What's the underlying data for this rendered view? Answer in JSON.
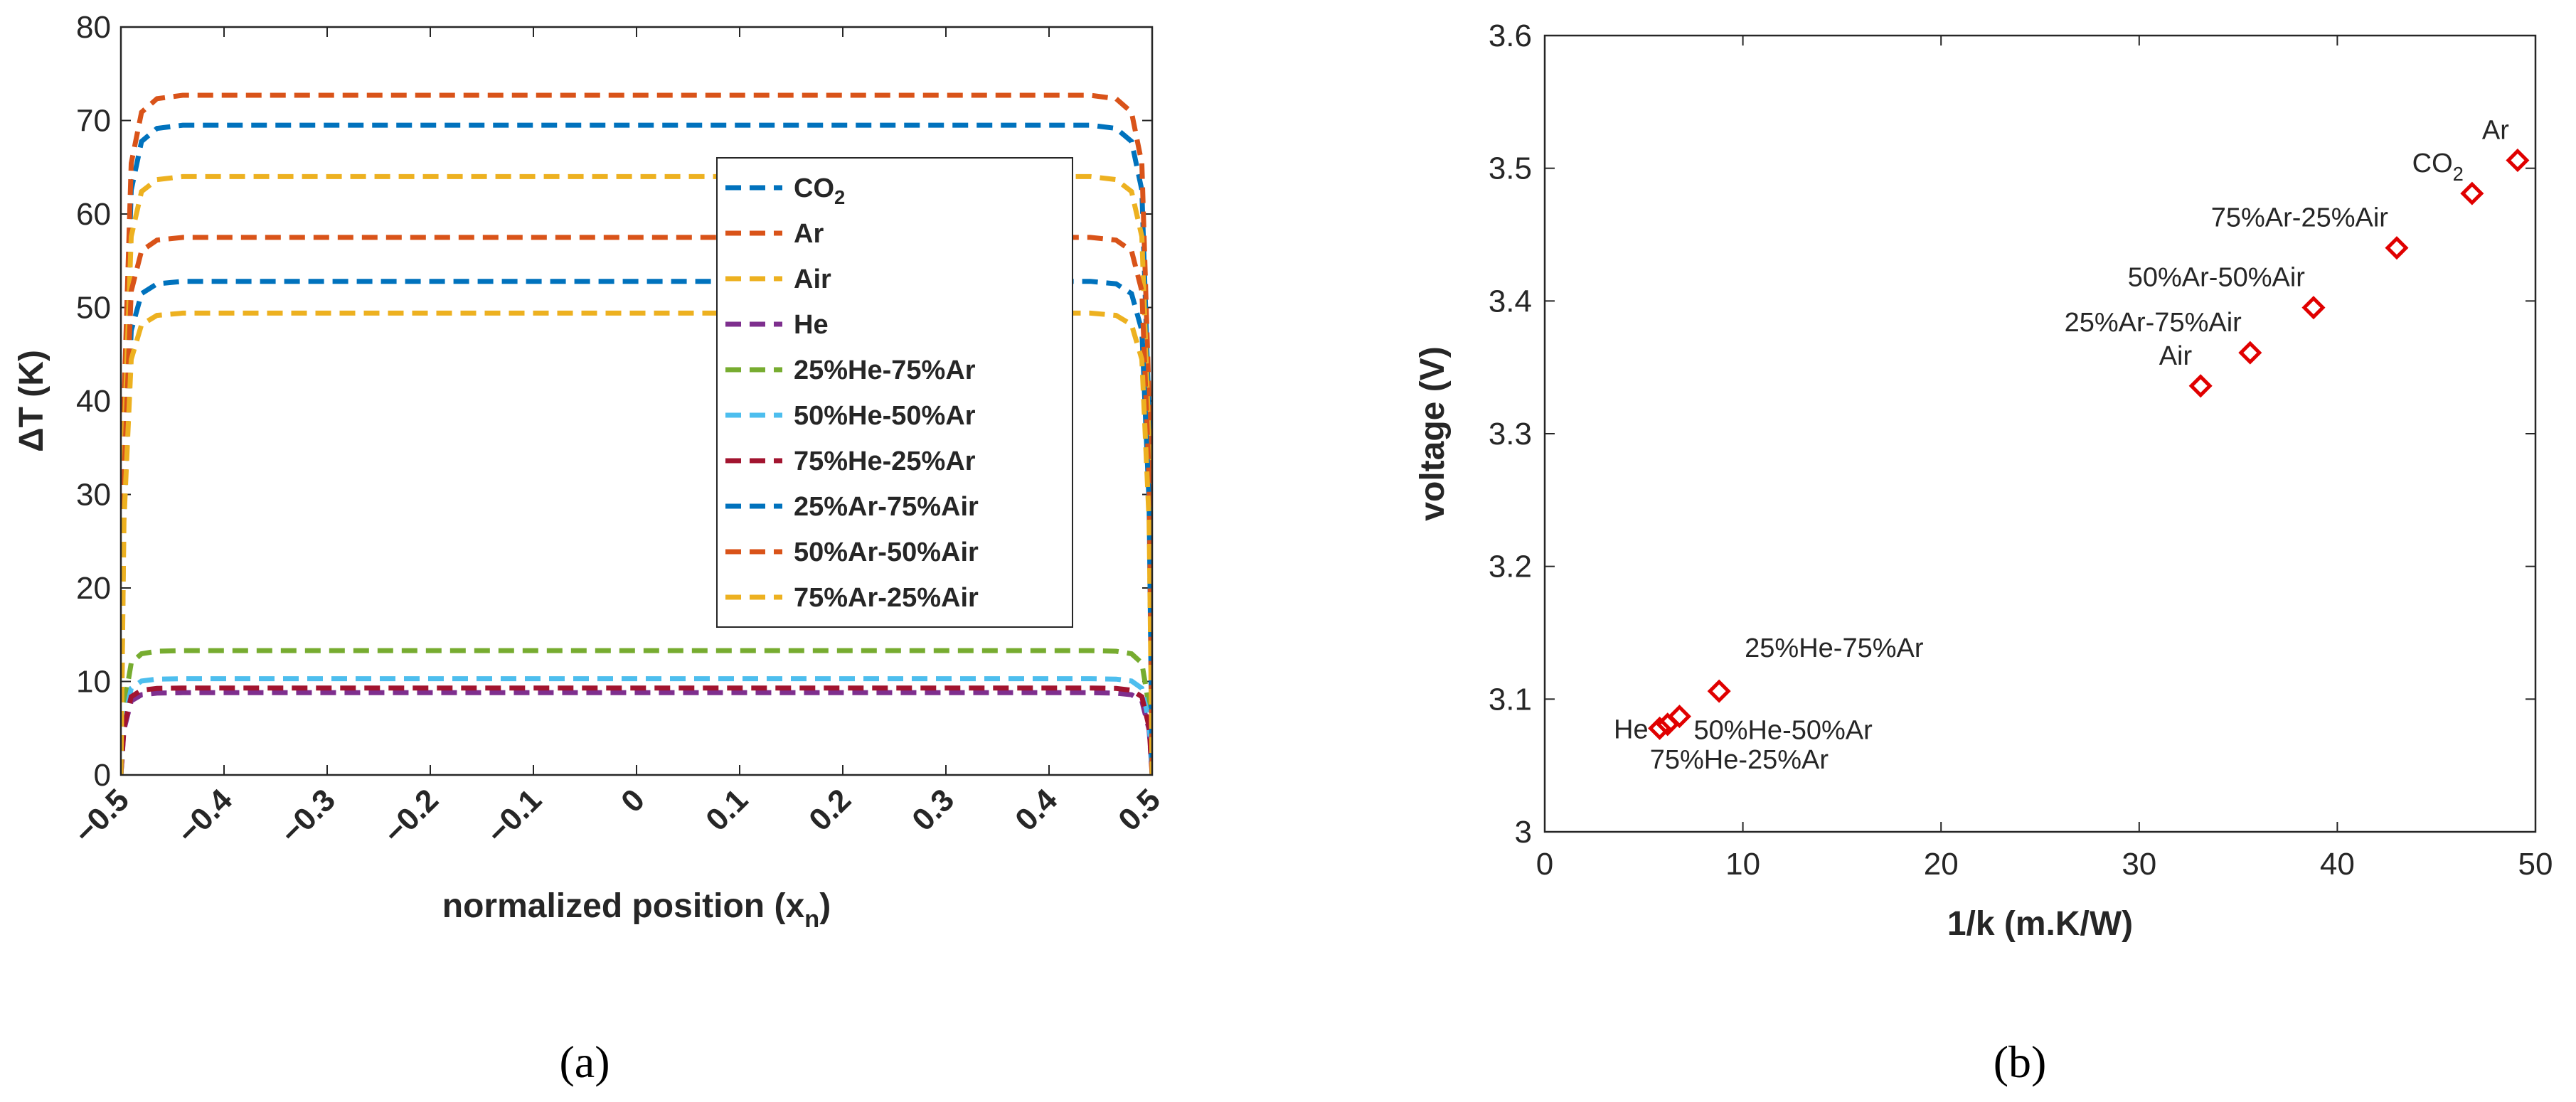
{
  "colors": {
    "blue": "#0072BD",
    "orange": "#D95319",
    "yellow": "#EDB120",
    "purple": "#7E2F8E",
    "green": "#77AC30",
    "cyan": "#4DBEEE",
    "maroon": "#A2142F",
    "marker": "#E00000"
  },
  "panel_labels": {
    "a": "(a)",
    "b": "(b)"
  },
  "chart_data": [
    {
      "type": "line",
      "title": "",
      "xlabel": "normalized position (x",
      "xlabel_sub": "n",
      "xlabel_close": ")",
      "ylabel": "ΔT (K)",
      "xlim": [
        -0.5,
        0.5
      ],
      "ylim": [
        0,
        80
      ],
      "xticks": [
        -0.5,
        -0.4,
        -0.3,
        -0.2,
        -0.1,
        0,
        0.1,
        0.2,
        0.3,
        0.4,
        0.5
      ],
      "xtick_labels": [
        "−0.5",
        "−0.4",
        "−0.3",
        "−0.2",
        "−0.1",
        "0",
        "0.1",
        "0.2",
        "0.3",
        "0.4",
        "0.5"
      ],
      "yticks": [
        0,
        10,
        20,
        30,
        40,
        50,
        60,
        70,
        80
      ],
      "ytick_labels": [
        "0",
        "10",
        "20",
        "30",
        "40",
        "50",
        "60",
        "70",
        "80"
      ],
      "legend_position": "inside right",
      "series": [
        {
          "name": "CO2",
          "name_main": "CO",
          "name_sub": "2",
          "plateau": 69.5,
          "color": "blue"
        },
        {
          "name": "Ar",
          "name_main": "Ar",
          "name_sub": "",
          "plateau": 72.7,
          "color": "orange"
        },
        {
          "name": "Air",
          "name_main": "Air",
          "name_sub": "",
          "plateau": 64.0,
          "color": "yellow"
        },
        {
          "name": "He",
          "name_main": "He",
          "name_sub": "",
          "plateau": 8.8,
          "color": "purple"
        },
        {
          "name": "25%He-75%Ar",
          "name_main": "25%He-75%Ar",
          "name_sub": "",
          "plateau": 13.3,
          "color": "green"
        },
        {
          "name": "50%He-50%Ar",
          "name_main": "50%He-50%Ar",
          "name_sub": "",
          "plateau": 10.3,
          "color": "cyan"
        },
        {
          "name": "75%He-25%Ar",
          "name_main": "75%He-25%Ar",
          "name_sub": "",
          "plateau": 9.3,
          "color": "maroon"
        },
        {
          "name": "25%Ar-75%Air",
          "name_main": "25%Ar-75%Air",
          "name_sub": "",
          "plateau": 52.8,
          "color": "blue"
        },
        {
          "name": "50%Ar-50%Air",
          "name_main": "50%Ar-50%Air",
          "name_sub": "",
          "plateau": 57.5,
          "color": "orange"
        },
        {
          "name": "75%Ar-25%Air",
          "name_main": "75%Ar-25%Air",
          "name_sub": "",
          "plateau": 49.4,
          "color": "yellow"
        }
      ]
    },
    {
      "type": "scatter",
      "title": "",
      "xlabel": "1/k (m.K/W)",
      "ylabel": "voltage (V)",
      "xlim": [
        0,
        50
      ],
      "ylim": [
        3.0,
        3.6
      ],
      "xticks": [
        0,
        10,
        20,
        30,
        40,
        50
      ],
      "xtick_labels": [
        "0",
        "10",
        "20",
        "30",
        "40",
        "50"
      ],
      "yticks": [
        3.0,
        3.1,
        3.2,
        3.3,
        3.4,
        3.5,
        3.6
      ],
      "ytick_labels": [
        "3",
        "3.1",
        "3.2",
        "3.3",
        "3.4",
        "3.5",
        "3.6"
      ],
      "marker": "diamond",
      "points": [
        {
          "label": "He",
          "label_main": "He",
          "label_sub": "",
          "x": 5.8,
          "y": 3.078,
          "anchor": "left"
        },
        {
          "label": "75%He-25%Ar",
          "label_main": "75%He-25%Ar",
          "label_sub": "",
          "x": 6.2,
          "y": 3.081,
          "anchor": "below"
        },
        {
          "label": "50%He-50%Ar",
          "label_main": "50%He-50%Ar",
          "label_sub": "",
          "x": 6.8,
          "y": 3.087,
          "anchor": "below-right"
        },
        {
          "label": "25%He-75%Ar",
          "label_main": "25%He-75%Ar",
          "label_sub": "",
          "x": 8.8,
          "y": 3.106,
          "anchor": "above-right"
        },
        {
          "label": "Air",
          "label_main": "Air",
          "label_sub": "",
          "x": 33.1,
          "y": 3.336,
          "anchor": "above-left"
        },
        {
          "label": "25%Ar-75%Air",
          "label_main": "25%Ar-75%Air",
          "label_sub": "",
          "x": 35.6,
          "y": 3.361,
          "anchor": "above-left"
        },
        {
          "label": "50%Ar-50%Air",
          "label_main": "50%Ar-50%Air",
          "label_sub": "",
          "x": 38.8,
          "y": 3.395,
          "anchor": "above-left"
        },
        {
          "label": "75%Ar-25%Air",
          "label_main": "75%Ar-25%Air",
          "label_sub": "",
          "x": 43.0,
          "y": 3.44,
          "anchor": "above-left"
        },
        {
          "label": "CO2",
          "label_main": "CO",
          "label_sub": "2",
          "x": 46.8,
          "y": 3.481,
          "anchor": "above-left"
        },
        {
          "label": "Ar",
          "label_main": "Ar",
          "label_sub": "",
          "x": 49.1,
          "y": 3.506,
          "anchor": "above-left"
        }
      ]
    }
  ]
}
